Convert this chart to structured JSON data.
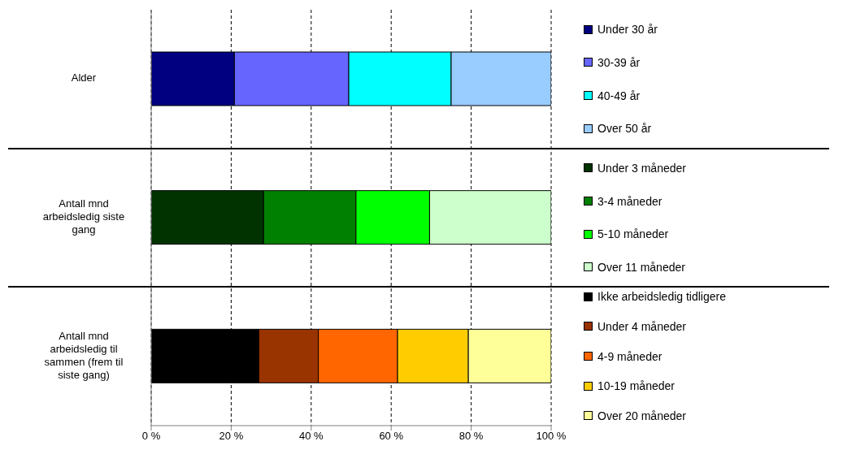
{
  "chart_data": {
    "type": "bar",
    "orientation": "horizontal",
    "stacked": true,
    "categories": [
      "Alder",
      "Antall mnd arbeidsledig siste gang",
      "Antall mnd arbeidsledig til sammen (frem til siste gang)"
    ],
    "series": [
      {
        "name": "Under 30 år",
        "color": "#000080",
        "values": [
          20.8,
          null,
          null
        ]
      },
      {
        "name": "30-39 år",
        "color": "#6666ff",
        "values": [
          28.6,
          null,
          null
        ]
      },
      {
        "name": "40-49 år",
        "color": "#00ffff",
        "values": [
          25.6,
          null,
          null
        ]
      },
      {
        "name": "Over 50 år",
        "color": "#99ccff",
        "values": [
          25.0,
          null,
          null
        ]
      },
      {
        "name": "Under 3 måneder",
        "color": "#003300",
        "values": [
          null,
          28.1,
          null
        ]
      },
      {
        "name": "3-4 måneder",
        "color": "#008000",
        "values": [
          null,
          23.1,
          null
        ]
      },
      {
        "name": "5-10 måneder",
        "color": "#00ff00",
        "values": [
          null,
          18.4,
          null
        ]
      },
      {
        "name": "Over 11 måneder",
        "color": "#ccffcc",
        "values": [
          null,
          30.4,
          null
        ]
      },
      {
        "name": "Ikke arbeidsledig tidligere",
        "color": "#000000",
        "values": [
          null,
          null,
          26.9
        ]
      },
      {
        "name": "Under 4 måneder",
        "color": "#993300",
        "values": [
          null,
          null,
          14.9
        ]
      },
      {
        "name": "4-9 måneder",
        "color": "#ff6600",
        "values": [
          null,
          null,
          19.8
        ]
      },
      {
        "name": "10-19 måneder",
        "color": "#ffcc00",
        "values": [
          null,
          null,
          17.7
        ]
      },
      {
        "name": "Over 20 måneder",
        "color": "#ffff99",
        "values": [
          null,
          null,
          20.7
        ]
      }
    ],
    "xlim": [
      0,
      100
    ],
    "xticks": [
      {
        "value": 0,
        "label": "0 %"
      },
      {
        "value": 20,
        "label": "20 %"
      },
      {
        "value": 40,
        "label": "40 %"
      },
      {
        "value": 60,
        "label": "60 %"
      },
      {
        "value": 80,
        "label": "80 %"
      },
      {
        "value": 100,
        "label": "100 %"
      }
    ],
    "grid": "x",
    "legend": "right"
  }
}
